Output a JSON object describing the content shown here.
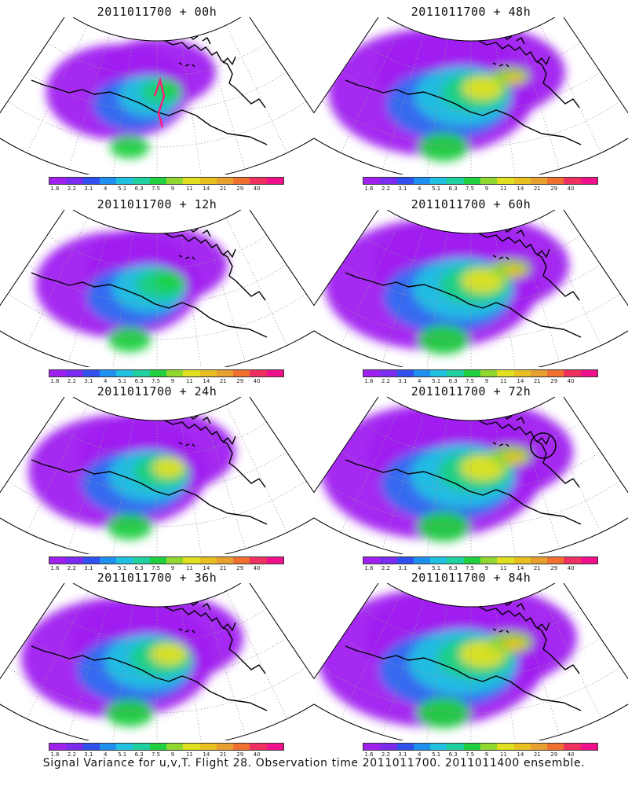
{
  "panels": [
    {
      "id": "p00",
      "title": "2011011700 + 00h",
      "intensity": 0.35,
      "obs_track": true,
      "circle": false
    },
    {
      "id": "p48",
      "title": "2011011700 + 48h",
      "intensity": 0.8,
      "obs_track": false,
      "circle": false
    },
    {
      "id": "p12",
      "title": "2011011700 + 12h",
      "intensity": 0.5,
      "obs_track": false,
      "circle": false
    },
    {
      "id": "p60",
      "title": "2011011700 + 60h",
      "intensity": 0.85,
      "obs_track": false,
      "circle": false
    },
    {
      "id": "p24",
      "title": "2011011700 + 24h",
      "intensity": 0.6,
      "obs_track": false,
      "circle": false
    },
    {
      "id": "p72",
      "title": "2011011700 + 72h",
      "intensity": 0.9,
      "obs_track": false,
      "circle": true
    },
    {
      "id": "p36",
      "title": "2011011700 + 36h",
      "intensity": 0.7,
      "obs_track": false,
      "circle": false
    },
    {
      "id": "p84",
      "title": "2011011700 + 84h",
      "intensity": 0.95,
      "obs_track": false,
      "circle": false
    }
  ],
  "colorbar": {
    "labels": [
      "1.6",
      "2.2",
      "3.1",
      "4",
      "5.1",
      "6.3",
      "7.5",
      "9",
      "11",
      "14",
      "21",
      "29",
      "40"
    ],
    "colors": [
      "#a020f0",
      "#7a2cf0",
      "#3050f0",
      "#2090f0",
      "#20c0e0",
      "#20d0a0",
      "#20d040",
      "#90d830",
      "#e0e020",
      "#e8c020",
      "#e8a030",
      "#f07030",
      "#f03060",
      "#f0108a"
    ]
  },
  "caption": "Signal Variance for u,v,T. Flight 28. Observation time 2011011700. 2011011400 ensemble."
}
